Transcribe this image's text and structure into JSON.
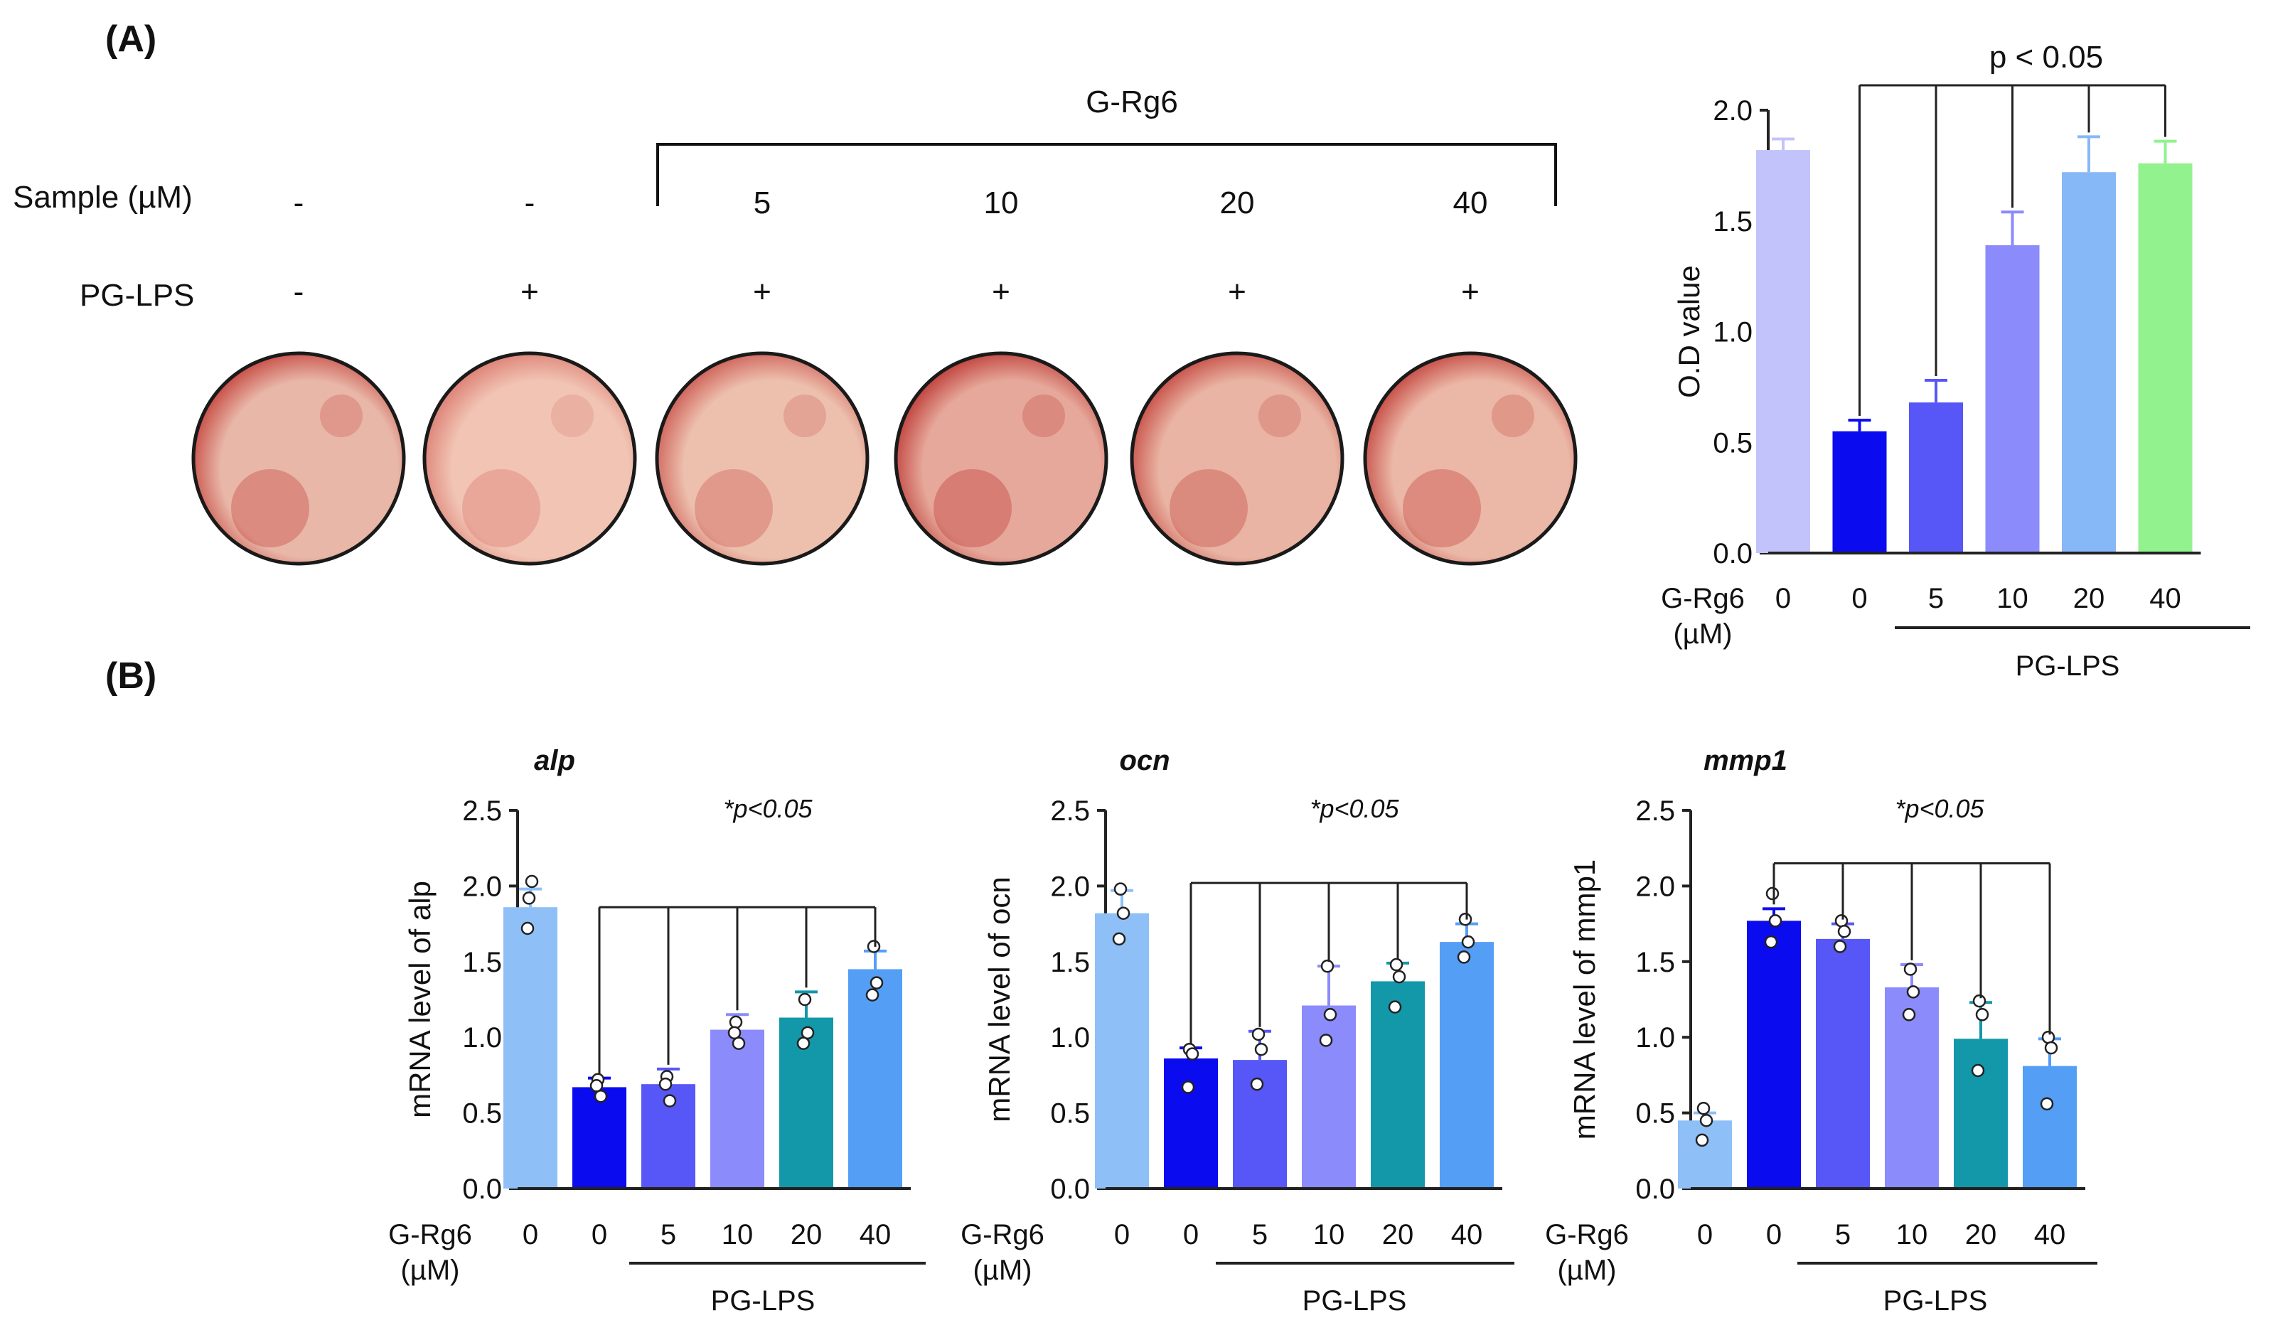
{
  "panels": {
    "a_label": "(A)",
    "b_label": "(B)"
  },
  "plates": {
    "group_label": "G-Rg6",
    "sample_label": "Sample (µM)",
    "lps_label": "PG-LPS",
    "sample_values": [
      "-",
      "-",
      "5",
      "10",
      "20",
      "40"
    ],
    "lps_values": [
      "-",
      "+",
      "+",
      "+",
      "+",
      "+"
    ],
    "wells": [
      {
        "name": "control",
        "tint": "#e8b7a8",
        "stain": "#c23a34"
      },
      {
        "name": "lps-only",
        "tint": "#f1c4b3",
        "stain": "#d9746a"
      },
      {
        "name": "grg6-5",
        "tint": "#edc0ae",
        "stain": "#c9514a"
      },
      {
        "name": "grg6-10",
        "tint": "#e6a89a",
        "stain": "#b92f2c"
      },
      {
        "name": "grg6-20",
        "tint": "#e9b4a3",
        "stain": "#c2403a"
      },
      {
        "name": "grg6-40",
        "tint": "#ebb7a6",
        "stain": "#bf3a35"
      }
    ]
  },
  "chart_data": [
    {
      "id": "od",
      "type": "bar",
      "title": "",
      "ylabel": "O.D value",
      "ylim": [
        0,
        2.0
      ],
      "yticks": [
        "0.0",
        "0.5",
        "1.0",
        "1.5",
        "2.0"
      ],
      "xlabel_line1": "G-Rg6",
      "xlabel_line2": "(µM)",
      "categories": [
        "0",
        "0",
        "5",
        "10",
        "20",
        "40"
      ],
      "values": [
        1.82,
        0.55,
        0.68,
        1.39,
        1.72,
        1.76
      ],
      "errors": [
        0.05,
        0.05,
        0.1,
        0.15,
        0.16,
        0.1
      ],
      "colors": [
        "#c3c3fb",
        "#0b0bf0",
        "#5757f7",
        "#8b8bfb",
        "#86b8f7",
        "#92f28e"
      ],
      "group_label": "PG-LPS",
      "significance": "p < 0.05"
    },
    {
      "id": "alp",
      "type": "bar",
      "title": "alp",
      "ylabel": "mRNA level of alp",
      "ylim": [
        0,
        2.5
      ],
      "yticks": [
        "0.0",
        "0.5",
        "1.0",
        "1.5",
        "2.0",
        "2.5"
      ],
      "xlabel_line1": "G-Rg6",
      "xlabel_line2": "(µM)",
      "categories": [
        "0",
        "0",
        "5",
        "10",
        "20",
        "40"
      ],
      "values": [
        1.86,
        0.67,
        0.69,
        1.05,
        1.13,
        1.45
      ],
      "errors": [
        0.12,
        0.06,
        0.1,
        0.1,
        0.17,
        0.12
      ],
      "points": [
        [
          1.92,
          2.03,
          1.72
        ],
        [
          0.72,
          0.61,
          0.68
        ],
        [
          0.74,
          0.58,
          0.69
        ],
        [
          1.1,
          0.96,
          1.03
        ],
        [
          1.25,
          1.03,
          0.96
        ],
        [
          1.6,
          1.36,
          1.28
        ]
      ],
      "colors": [
        "#8ec0f7",
        "#0b0bf0",
        "#5757f7",
        "#8b8bfb",
        "#1298a9",
        "#549ef6"
      ],
      "group_label": "PG-LPS",
      "significance": "*p<0.05"
    },
    {
      "id": "ocn",
      "type": "bar",
      "title": "ocn",
      "ylabel": "mRNA level of ocn",
      "ylim": [
        0,
        2.5
      ],
      "yticks": [
        "0.0",
        "0.5",
        "1.0",
        "1.5",
        "2.0",
        "2.5"
      ],
      "xlabel_line1": "G-Rg6",
      "xlabel_line2": "(µM)",
      "categories": [
        "0",
        "0",
        "5",
        "10",
        "20",
        "40"
      ],
      "values": [
        1.82,
        0.86,
        0.85,
        1.21,
        1.37,
        1.63
      ],
      "errors": [
        0.15,
        0.07,
        0.19,
        0.26,
        0.12,
        0.12
      ],
      "points": [
        [
          1.98,
          1.82,
          1.65
        ],
        [
          0.92,
          0.89,
          0.67
        ],
        [
          1.02,
          0.92,
          0.69
        ],
        [
          1.47,
          1.15,
          0.98
        ],
        [
          1.48,
          1.4,
          1.2
        ],
        [
          1.78,
          1.63,
          1.53
        ]
      ],
      "colors": [
        "#8ec0f7",
        "#0b0bf0",
        "#5757f7",
        "#8b8bfb",
        "#1298a9",
        "#549ef6"
      ],
      "group_label": "PG-LPS",
      "significance": "*p<0.05"
    },
    {
      "id": "mmp1",
      "type": "bar",
      "title": "mmp1",
      "ylabel": "mRNA level of mmp1",
      "ylim": [
        0,
        2.5
      ],
      "yticks": [
        "0.0",
        "0.5",
        "1.0",
        "1.5",
        "2.0",
        "2.5"
      ],
      "xlabel_line1": "G-Rg6",
      "xlabel_line2": "(µM)",
      "categories": [
        "0",
        "0",
        "5",
        "10",
        "20",
        "40"
      ],
      "values": [
        0.45,
        1.77,
        1.65,
        1.33,
        0.99,
        0.81
      ],
      "errors": [
        0.05,
        0.08,
        0.1,
        0.15,
        0.24,
        0.18
      ],
      "points": [
        [
          0.53,
          0.45,
          0.32
        ],
        [
          1.95,
          1.77,
          1.63
        ],
        [
          1.77,
          1.7,
          1.6
        ],
        [
          1.45,
          1.3,
          1.15
        ],
        [
          1.24,
          1.15,
          0.78
        ],
        [
          1.0,
          0.93,
          0.56
        ]
      ],
      "colors": [
        "#8ec0f7",
        "#0b0bf0",
        "#5757f7",
        "#8b8bfb",
        "#1298a9",
        "#549ef6"
      ],
      "group_label": "PG-LPS",
      "significance": "*p<0.05"
    }
  ]
}
